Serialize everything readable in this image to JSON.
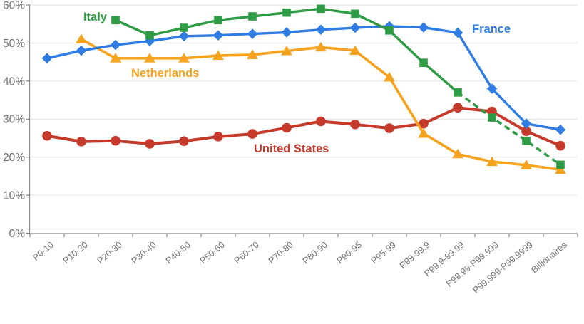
{
  "chart_data": {
    "type": "line",
    "title": "",
    "xlabel": "",
    "ylabel": "",
    "ylim": [
      0,
      60
    ],
    "ytick_labels": [
      "0%",
      "10%",
      "20%",
      "30%",
      "40%",
      "50%",
      "60%"
    ],
    "grid": true,
    "legend_position": "inline-annotations",
    "categories": [
      "P0-10",
      "P10-20",
      "P20-30",
      "P30-40",
      "P40-50",
      "P50-60",
      "P60-70",
      "P70-80",
      "P80-90",
      "P90-95",
      "P95-99",
      "P99-99.9",
      "P99.9-99.99",
      "P99.99-P99.999",
      "P99.999-P99.9999",
      "Billionaires"
    ],
    "series": [
      {
        "name": "United States",
        "color": "#C63A2C",
        "marker": "circle",
        "line": "solid",
        "values": [
          25.6,
          24.1,
          24.3,
          23.5,
          24.2,
          25.4,
          26.1,
          27.7,
          29.4,
          28.6,
          27.6,
          28.8,
          33,
          32,
          26.8,
          23
        ]
      },
      {
        "name": "Netherlands",
        "color": "#F5A31F",
        "marker": "triangle",
        "line": "solid",
        "values": [
          null,
          51,
          46,
          46,
          46,
          46.7,
          46.9,
          47.9,
          48.9,
          48,
          41,
          26.2,
          20.8,
          18.8,
          17.9,
          16.7
        ]
      },
      {
        "name": "France",
        "color": "#2F7CE4",
        "marker": "diamond",
        "line": "solid",
        "values": [
          46,
          48,
          49.5,
          50.5,
          51.8,
          52,
          52.4,
          52.8,
          53.5,
          54,
          54.4,
          54.1,
          52.7,
          38,
          28.8,
          27.2
        ]
      },
      {
        "name": "Italy",
        "color": "#2E9C44",
        "marker": "square",
        "line": "solid-then-dashed",
        "dashed_from_category": "P99.9-99.99",
        "values": [
          null,
          null,
          56,
          52,
          54,
          56,
          57,
          58,
          59,
          57.7,
          53.3,
          44.8,
          37,
          30.4,
          24.3,
          18
        ]
      }
    ],
    "annotations": [
      {
        "text": "Italy",
        "series": "Italy"
      },
      {
        "text": "Netherlands",
        "series": "Netherlands"
      },
      {
        "text": "France",
        "series": "France"
      },
      {
        "text": "United States",
        "series": "United States"
      }
    ],
    "axis_colors": {
      "grid": "#ECECEC",
      "axis": "#8C8C8C",
      "x_tick_text": "#757575",
      "y_tick_text": "#6E6E6E"
    }
  }
}
